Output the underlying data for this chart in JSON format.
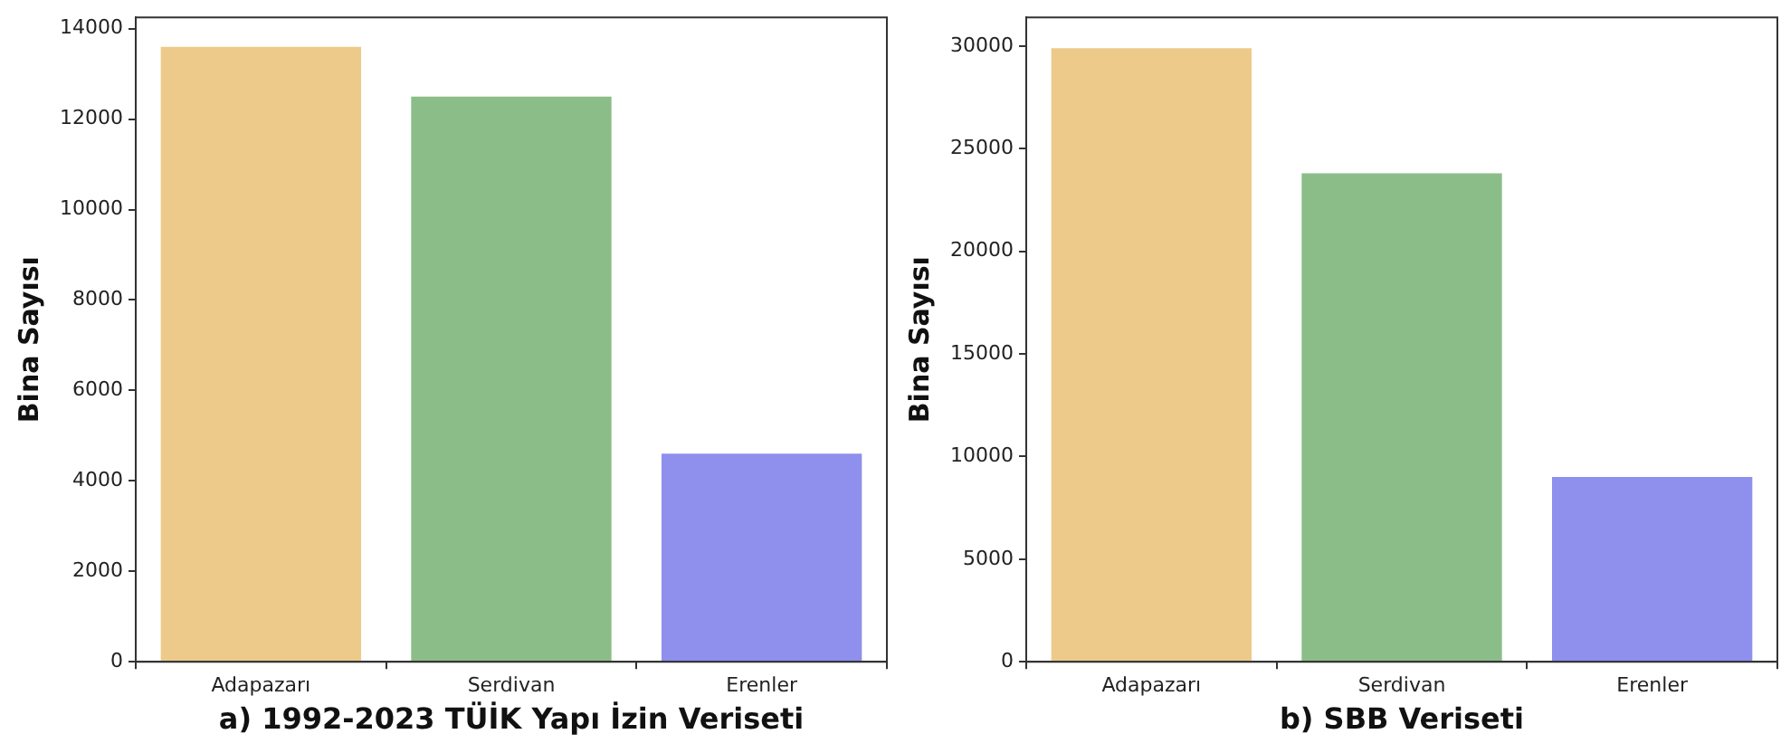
{
  "chart_data": [
    {
      "type": "bar",
      "xlabel": "a) 1992-2023 TÜİK Yapı İzin Veriseti",
      "ylabel": "Bina Sayısı",
      "categories": [
        "Adapazarı",
        "Serdivan",
        "Erenler"
      ],
      "values": [
        13600,
        12500,
        4600
      ],
      "colors": [
        "#edca8a",
        "#8bbd89",
        "#8f8fee"
      ],
      "ylim": [
        0,
        14250
      ],
      "yticks": [
        0,
        2000,
        4000,
        6000,
        8000,
        10000,
        12000,
        14000
      ],
      "grid": false,
      "legend": false
    },
    {
      "type": "bar",
      "xlabel": "b) SBB Veriseti",
      "ylabel": "Bina Sayısı",
      "categories": [
        "Adapazarı",
        "Serdivan",
        "Erenler"
      ],
      "values": [
        29900,
        23800,
        9000
      ],
      "colors": [
        "#edca8a",
        "#8bbd89",
        "#8f8fee"
      ],
      "ylim": [
        0,
        31400
      ],
      "yticks": [
        0,
        5000,
        10000,
        15000,
        20000,
        25000,
        30000
      ],
      "grid": false,
      "legend": false
    }
  ]
}
